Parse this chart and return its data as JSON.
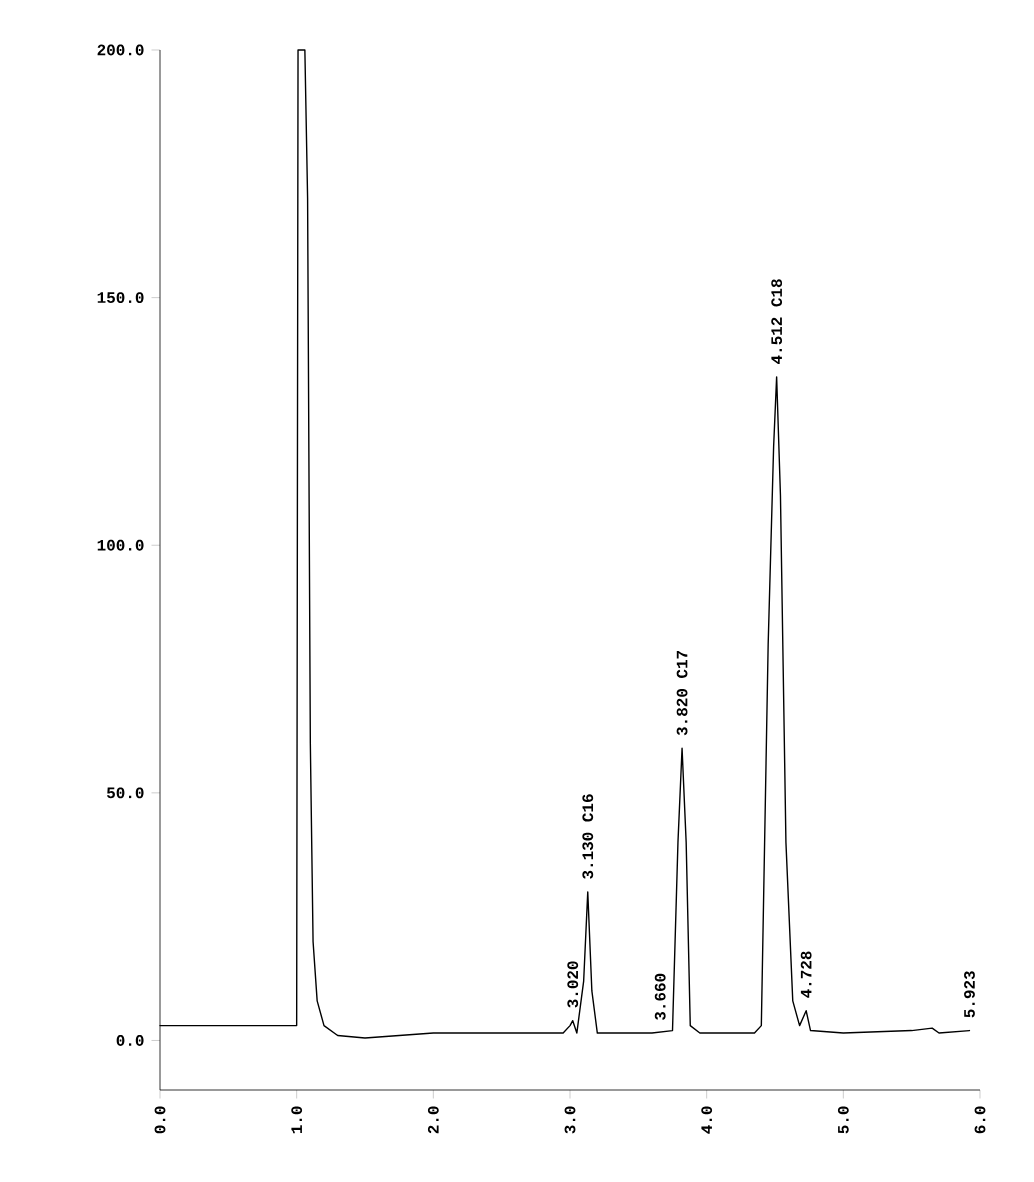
{
  "chart_data": {
    "type": "line",
    "xlim": [
      0,
      6
    ],
    "ylim": [
      -10,
      200
    ],
    "xticks": [
      {
        "value": 0,
        "label": "0.0"
      },
      {
        "value": 1,
        "label": "1.0"
      },
      {
        "value": 2,
        "label": "2.0"
      },
      {
        "value": 3,
        "label": "3.0"
      },
      {
        "value": 4,
        "label": "4.0"
      },
      {
        "value": 5,
        "label": "5.0"
      },
      {
        "value": 6,
        "label": "6.0"
      }
    ],
    "yticks": [
      {
        "value": 0,
        "label": "0.0"
      },
      {
        "value": 50,
        "label": "50.0"
      },
      {
        "value": 100,
        "label": "100.0"
      },
      {
        "value": 150,
        "label": "150.0"
      },
      {
        "value": 200,
        "label": "200.0"
      }
    ],
    "grid": false,
    "marker": "none",
    "line_style": "solid",
    "series": [
      {
        "color": "#000000",
        "x": [
          0,
          1.0,
          1.01,
          1.03,
          1.06,
          1.08,
          1.1,
          1.12,
          1.15,
          1.2,
          1.3,
          1.5,
          2.0,
          2.5,
          2.95,
          3.0,
          3.02,
          3.05,
          3.1,
          3.13,
          3.16,
          3.2,
          3.6,
          3.75,
          3.79,
          3.82,
          3.85,
          3.88,
          3.95,
          4.35,
          4.4,
          4.45,
          4.49,
          4.512,
          4.54,
          4.58,
          4.63,
          4.68,
          4.728,
          4.76,
          5.0,
          5.5,
          5.65,
          5.7,
          5.923
        ],
        "values": [
          3,
          3,
          200,
          200,
          200,
          170,
          60,
          20,
          8,
          3,
          1,
          0.5,
          1.5,
          1.5,
          1.5,
          3,
          4,
          1.5,
          12,
          30,
          10,
          1.5,
          1.5,
          2,
          40,
          59,
          40,
          3,
          1.5,
          1.5,
          3,
          80,
          120,
          134,
          110,
          40,
          8,
          3,
          6,
          2,
          1.5,
          2,
          2.5,
          1.5,
          2
        ]
      }
    ],
    "annotations": [
      {
        "text": "3.020",
        "x": 3.02,
        "y": 4
      },
      {
        "text": "3.130 C16",
        "x": 3.13,
        "y": 30
      },
      {
        "text": "3.660",
        "x": 3.66,
        "y": 1.5
      },
      {
        "text": "3.820 C17",
        "x": 3.82,
        "y": 59
      },
      {
        "text": "4.512 C18",
        "x": 4.512,
        "y": 134
      },
      {
        "text": "4.728",
        "x": 4.728,
        "y": 6
      },
      {
        "text": "5.923",
        "x": 5.923,
        "y": 2
      }
    ]
  }
}
